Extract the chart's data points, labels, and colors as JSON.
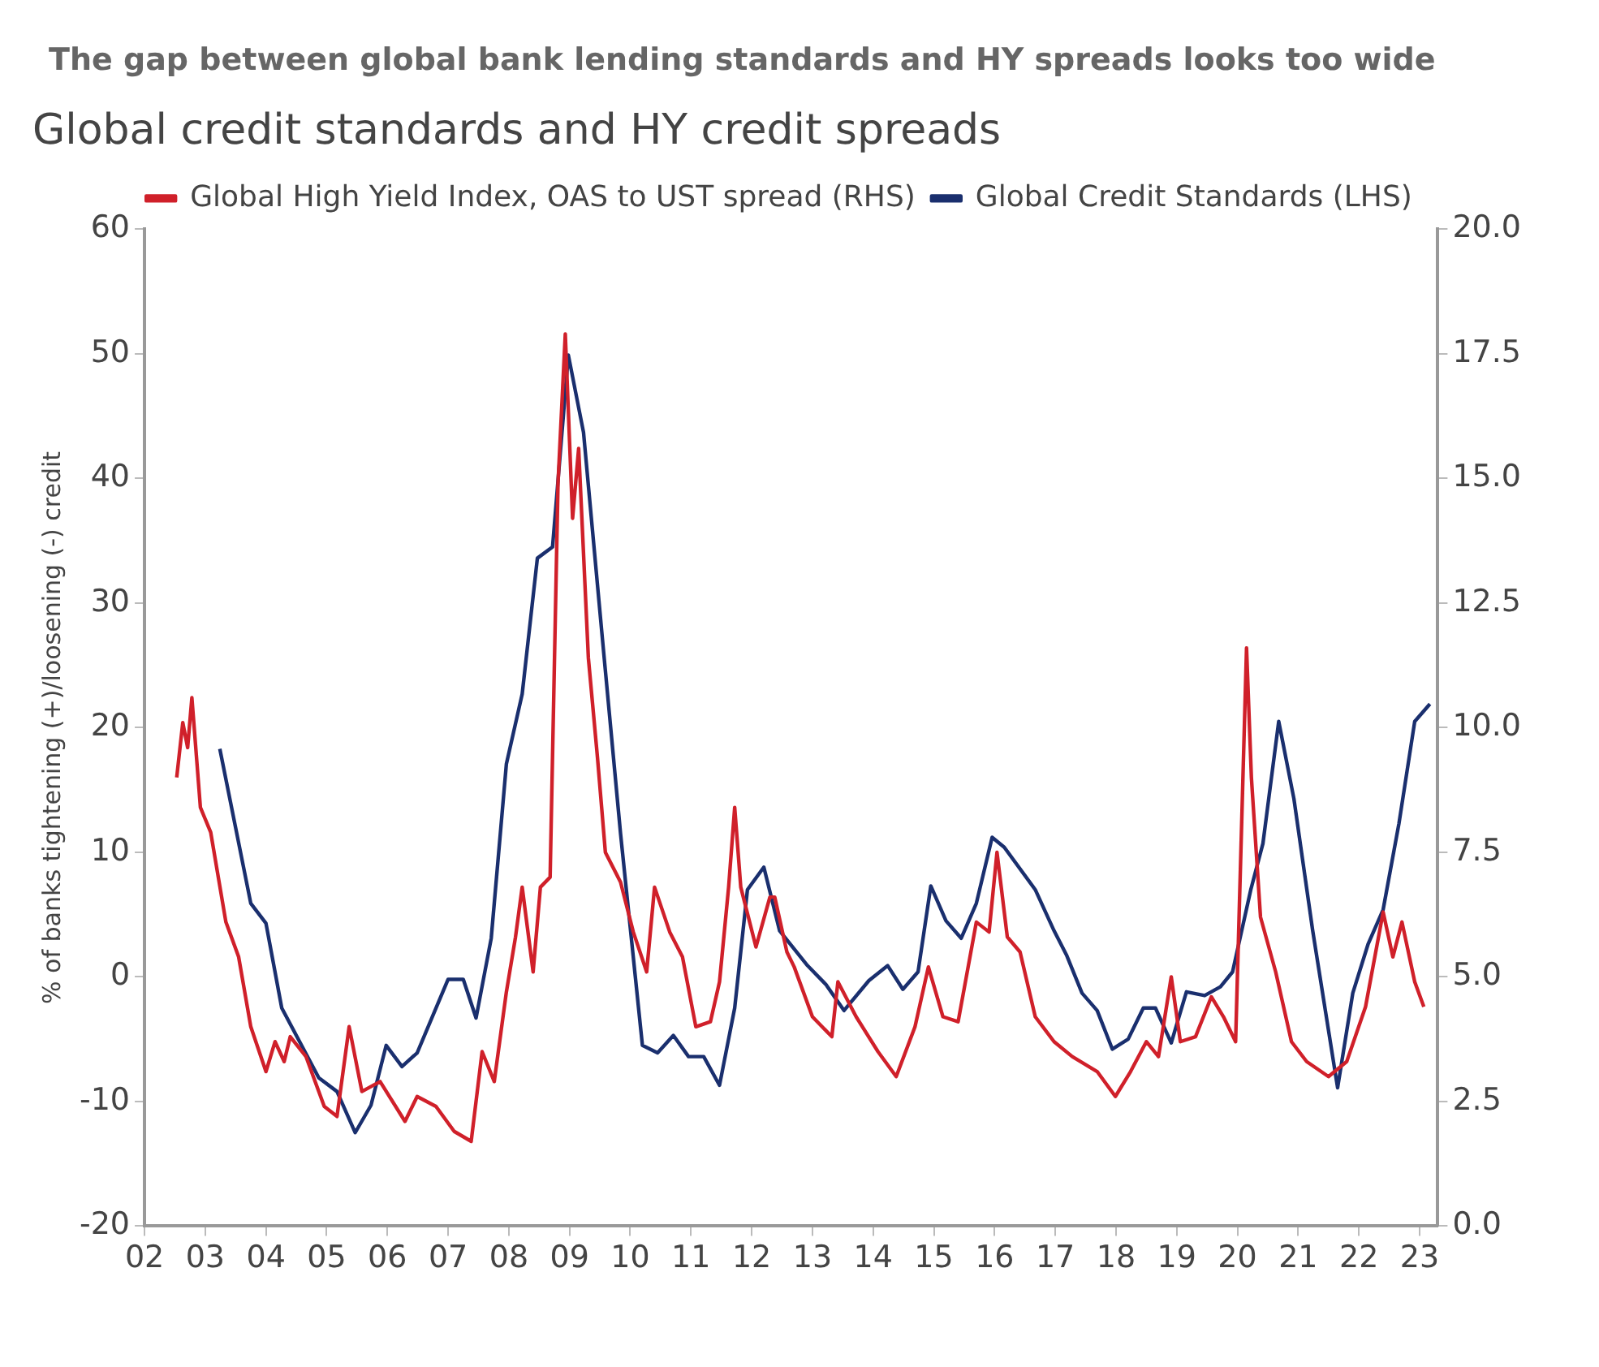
{
  "chart_data": {
    "type": "line",
    "subtitle": "The gap between global bank lending standards and HY spreads looks too wide",
    "title": "Global credit standards and HY credit spreads",
    "ylabel": "% of banks tightening (+)/loosening (-) credit",
    "xlim": [
      2002,
      2023.3
    ],
    "xticks": [
      {
        "value": 2002,
        "label": "02"
      },
      {
        "value": 2003,
        "label": "03"
      },
      {
        "value": 2004,
        "label": "04"
      },
      {
        "value": 2005,
        "label": "05"
      },
      {
        "value": 2006,
        "label": "06"
      },
      {
        "value": 2007,
        "label": "07"
      },
      {
        "value": 2008,
        "label": "08"
      },
      {
        "value": 2009,
        "label": "09"
      },
      {
        "value": 2010,
        "label": "10"
      },
      {
        "value": 2011,
        "label": "11"
      },
      {
        "value": 2012,
        "label": "12"
      },
      {
        "value": 2013,
        "label": "13"
      },
      {
        "value": 2014,
        "label": "14"
      },
      {
        "value": 2015,
        "label": "15"
      },
      {
        "value": 2016,
        "label": "16"
      },
      {
        "value": 2017,
        "label": "17"
      },
      {
        "value": 2018,
        "label": "18"
      },
      {
        "value": 2019,
        "label": "19"
      },
      {
        "value": 2020,
        "label": "20"
      },
      {
        "value": 2021,
        "label": "21"
      },
      {
        "value": 2022,
        "label": "22"
      },
      {
        "value": 2023,
        "label": "23"
      }
    ],
    "ylim": [
      -20,
      60
    ],
    "yticks": [
      -20,
      -10,
      0,
      10,
      20,
      30,
      40,
      50,
      60
    ],
    "y2lim": [
      0,
      20
    ],
    "y2ticks": [
      {
        "value": 0,
        "label": "0.0"
      },
      {
        "value": 2.5,
        "label": "2.5"
      },
      {
        "value": 5,
        "label": "5.0"
      },
      {
        "value": 7.5,
        "label": "7.5"
      },
      {
        "value": 10,
        "label": "10.0"
      },
      {
        "value": 12.5,
        "label": "12.5"
      },
      {
        "value": 15,
        "label": "15.0"
      },
      {
        "value": 17.5,
        "label": "17.5"
      },
      {
        "value": 20,
        "label": "20.0"
      }
    ],
    "grid": false,
    "legend": "top",
    "marker": "none",
    "line_style": "solid",
    "series": [
      {
        "name": "Global High Yield Index, OAS to UST spread (RHS)",
        "color": "#d0202a",
        "axis": "y2",
        "x": [
          2002.53,
          2002.63,
          2002.71,
          2002.78,
          2002.92,
          2003.09,
          2003.34,
          2003.55,
          2003.75,
          2004.0,
          2004.15,
          2004.3,
          2004.4,
          2004.66,
          2004.96,
          2005.17,
          2005.37,
          2005.58,
          2005.88,
          2006.29,
          2006.49,
          2006.8,
          2007.1,
          2007.38,
          2007.56,
          2007.76,
          2007.96,
          2008.11,
          2008.22,
          2008.4,
          2008.52,
          2008.68,
          2008.81,
          2008.93,
          2009.05,
          2009.15,
          2009.31,
          2009.46,
          2009.59,
          2009.84,
          2010.05,
          2010.27,
          2010.4,
          2010.65,
          2010.86,
          2011.08,
          2011.32,
          2011.47,
          2011.62,
          2011.72,
          2011.82,
          2012.07,
          2012.3,
          2012.38,
          2012.58,
          2012.7,
          2013.0,
          2013.32,
          2013.42,
          2013.72,
          2014.08,
          2014.38,
          2014.69,
          2014.91,
          2015.15,
          2015.4,
          2015.7,
          2015.91,
          2016.04,
          2016.21,
          2016.42,
          2016.67,
          2016.98,
          2017.28,
          2017.69,
          2017.99,
          2018.24,
          2018.5,
          2018.7,
          2018.91,
          2019.06,
          2019.31,
          2019.57,
          2019.77,
          2019.97,
          2020.15,
          2020.23,
          2020.38,
          2020.63,
          2020.89,
          2021.14,
          2021.5,
          2021.8,
          2022.11,
          2022.4,
          2022.56,
          2022.71,
          2022.92,
          2023.07
        ],
        "values": [
          9.0,
          10.1,
          9.6,
          10.6,
          8.4,
          7.9,
          6.1,
          5.4,
          4.0,
          3.1,
          3.7,
          3.3,
          3.8,
          3.4,
          2.4,
          2.2,
          4.0,
          2.7,
          2.9,
          2.1,
          2.6,
          2.4,
          1.9,
          1.7,
          3.5,
          2.9,
          4.7,
          5.8,
          6.8,
          5.1,
          6.8,
          7.0,
          14.9,
          17.9,
          14.2,
          15.6,
          11.4,
          9.4,
          7.5,
          6.9,
          5.9,
          5.1,
          6.8,
          5.9,
          5.4,
          4.0,
          4.1,
          4.9,
          6.8,
          8.4,
          6.8,
          5.6,
          6.6,
          6.6,
          5.5,
          5.2,
          4.2,
          3.8,
          4.9,
          4.2,
          3.5,
          3.0,
          4.0,
          5.2,
          4.2,
          4.1,
          6.1,
          5.9,
          7.5,
          5.8,
          5.5,
          4.2,
          3.7,
          3.4,
          3.1,
          2.6,
          3.1,
          3.7,
          3.4,
          5.0,
          3.7,
          3.8,
          4.6,
          4.2,
          3.7,
          11.6,
          9.0,
          6.2,
          5.1,
          3.7,
          3.3,
          3.0,
          3.3,
          4.4,
          6.3,
          5.4,
          6.1,
          4.9,
          4.4
        ]
      },
      {
        "name": "Global Credit Standards (LHS)",
        "color": "#1a2f6e",
        "x": [
          2003.24,
          2003.75,
          2004.0,
          2004.26,
          2004.87,
          2005.17,
          2005.47,
          2005.73,
          2005.98,
          2006.24,
          2006.49,
          2007.0,
          2007.25,
          2007.46,
          2007.71,
          2007.96,
          2008.22,
          2008.47,
          2008.72,
          2008.98,
          2009.23,
          2009.54,
          2009.84,
          2010.2,
          2010.45,
          2010.71,
          2010.96,
          2011.21,
          2011.47,
          2011.72,
          2011.93,
          2012.2,
          2012.46,
          2012.92,
          2013.22,
          2013.52,
          2013.93,
          2014.24,
          2014.49,
          2014.74,
          2014.95,
          2015.2,
          2015.45,
          2015.7,
          2015.96,
          2016.16,
          2016.67,
          2016.98,
          2017.19,
          2017.44,
          2017.69,
          2017.94,
          2018.2,
          2018.45,
          2018.65,
          2018.91,
          2019.16,
          2019.46,
          2019.72,
          2019.92,
          2020.22,
          2020.42,
          2020.68,
          2020.93,
          2021.24,
          2021.65,
          2021.9,
          2022.15,
          2022.4,
          2022.66,
          2022.92,
          2023.17
        ],
        "values": [
          18.3,
          5.9,
          4.3,
          -2.5,
          -8.1,
          -9.2,
          -12.5,
          -10.3,
          -5.5,
          -7.2,
          -6.1,
          -0.2,
          -0.2,
          -3.3,
          3.1,
          17.1,
          22.7,
          33.6,
          34.5,
          49.9,
          43.7,
          27.2,
          11.5,
          -5.5,
          -6.1,
          -4.7,
          -6.4,
          -6.4,
          -8.7,
          -2.5,
          7.0,
          8.8,
          3.7,
          0.9,
          -0.6,
          -2.7,
          -0.3,
          0.9,
          -1.0,
          0.4,
          7.3,
          4.5,
          3.1,
          5.9,
          11.2,
          10.4,
          7.0,
          3.7,
          1.7,
          -1.3,
          -2.7,
          -5.8,
          -5.0,
          -2.5,
          -2.5,
          -5.3,
          -1.2,
          -1.5,
          -0.8,
          0.4,
          7.0,
          10.7,
          20.5,
          14.3,
          3.7,
          -8.9,
          -1.3,
          2.6,
          5.4,
          12.3,
          20.5,
          21.9
        ]
      }
    ]
  }
}
